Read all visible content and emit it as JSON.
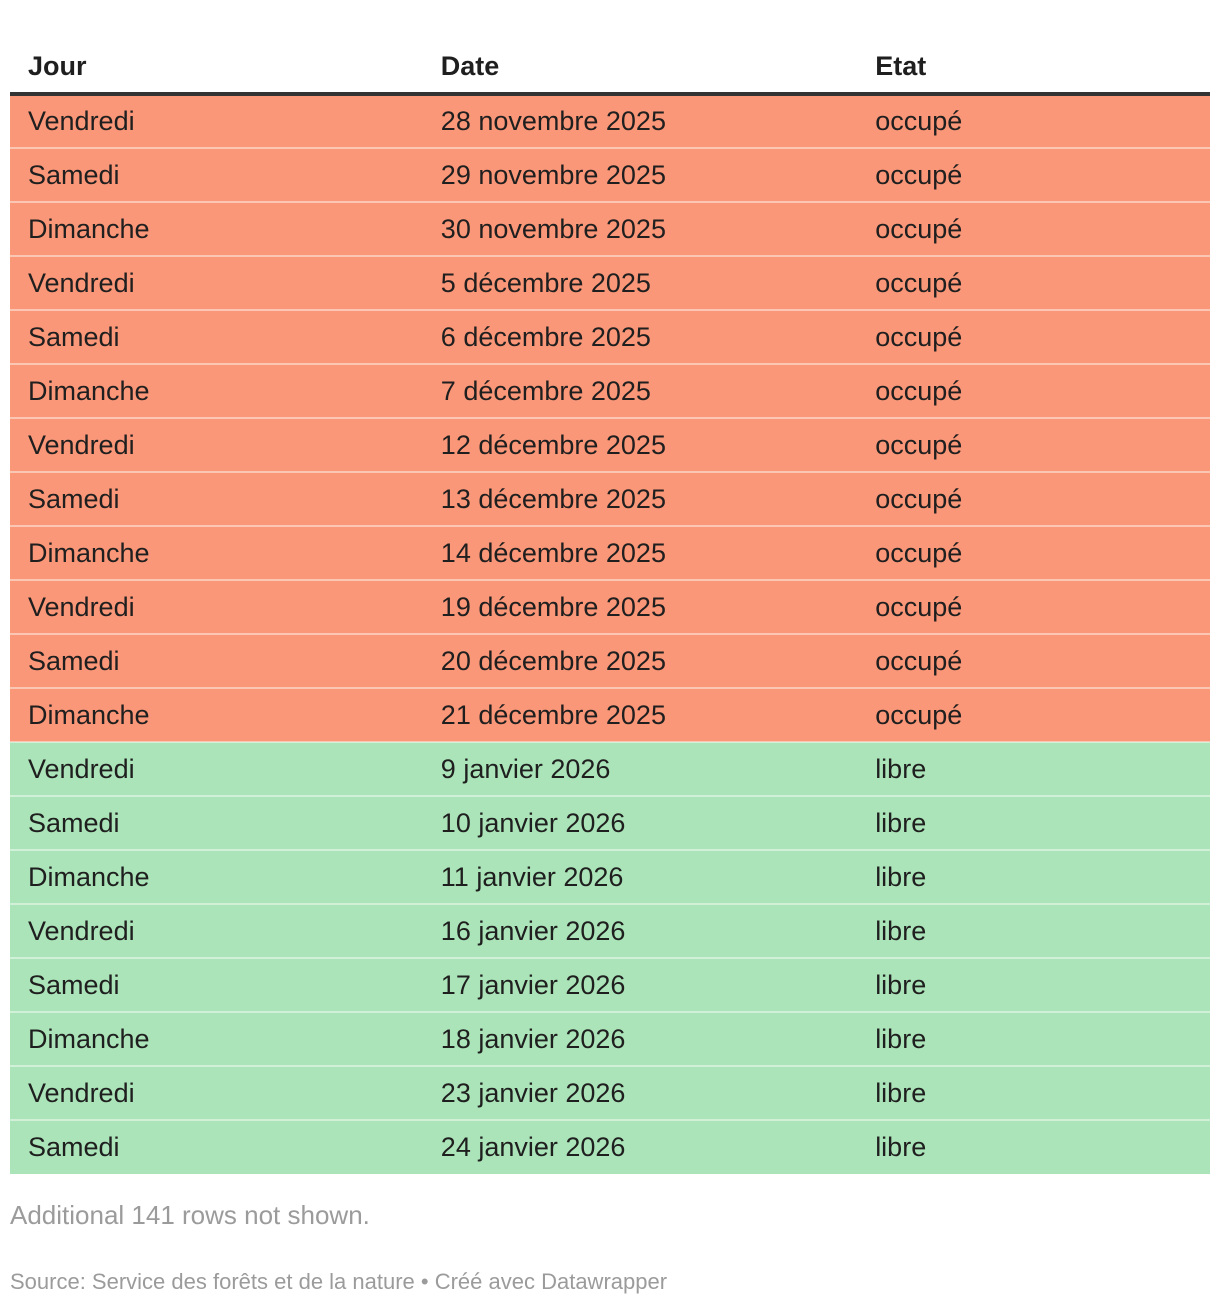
{
  "table": {
    "columns": [
      {
        "key": "jour",
        "label": "Jour"
      },
      {
        "key": "date",
        "label": "Date"
      },
      {
        "key": "etat",
        "label": "Etat"
      }
    ],
    "rows": [
      {
        "jour": "Vendredi",
        "date": "28 novembre 2025",
        "etat": "occupé",
        "status": "occupe"
      },
      {
        "jour": "Samedi",
        "date": "29 novembre 2025",
        "etat": "occupé",
        "status": "occupe"
      },
      {
        "jour": "Dimanche",
        "date": "30 novembre 2025",
        "etat": "occupé",
        "status": "occupe"
      },
      {
        "jour": "Vendredi",
        "date": "5 décembre 2025",
        "etat": "occupé",
        "status": "occupe"
      },
      {
        "jour": "Samedi",
        "date": "6 décembre 2025",
        "etat": "occupé",
        "status": "occupe"
      },
      {
        "jour": "Dimanche",
        "date": "7 décembre 2025",
        "etat": "occupé",
        "status": "occupe"
      },
      {
        "jour": "Vendredi",
        "date": "12 décembre 2025",
        "etat": "occupé",
        "status": "occupe"
      },
      {
        "jour": "Samedi",
        "date": "13 décembre 2025",
        "etat": "occupé",
        "status": "occupe"
      },
      {
        "jour": "Dimanche",
        "date": "14 décembre 2025",
        "etat": "occupé",
        "status": "occupe"
      },
      {
        "jour": "Vendredi",
        "date": "19 décembre 2025",
        "etat": "occupé",
        "status": "occupe"
      },
      {
        "jour": "Samedi",
        "date": "20 décembre 2025",
        "etat": "occupé",
        "status": "occupe"
      },
      {
        "jour": "Dimanche",
        "date": "21 décembre 2025",
        "etat": "occupé",
        "status": "occupe"
      },
      {
        "jour": "Vendredi",
        "date": "9 janvier 2026",
        "etat": "libre",
        "status": "libre"
      },
      {
        "jour": "Samedi",
        "date": "10 janvier 2026",
        "etat": "libre",
        "status": "libre"
      },
      {
        "jour": "Dimanche",
        "date": "11 janvier 2026",
        "etat": "libre",
        "status": "libre"
      },
      {
        "jour": "Vendredi",
        "date": "16 janvier 2026",
        "etat": "libre",
        "status": "libre"
      },
      {
        "jour": "Samedi",
        "date": "17 janvier 2026",
        "etat": "libre",
        "status": "libre"
      },
      {
        "jour": "Dimanche",
        "date": "18 janvier 2026",
        "etat": "libre",
        "status": "libre"
      },
      {
        "jour": "Vendredi",
        "date": "23 janvier 2026",
        "etat": "libre",
        "status": "libre"
      },
      {
        "jour": "Samedi",
        "date": "24 janvier 2026",
        "etat": "libre",
        "status": "libre"
      }
    ]
  },
  "footer": {
    "additional_note": "Additional 141 rows not shown.",
    "source": "Source: Service des forêts et de la nature • Créé avec Datawrapper"
  },
  "colors": {
    "occupied": "#fa9778",
    "free": "#abe4b8",
    "header_border": "#333333",
    "text": "#1f1f1f",
    "footer_text": "#9b9b9b"
  }
}
